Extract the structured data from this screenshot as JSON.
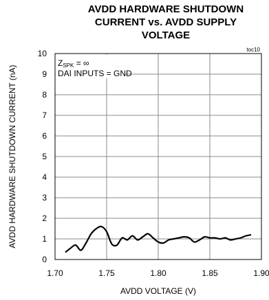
{
  "chart_data": {
    "type": "line",
    "title": "AVDD HARDWARE SHUTDOWN\nCURRENT vs. AVDD SUPPLY\nVOLTAGE",
    "xlabel": "AVDD VOLTAGE (V)",
    "ylabel": "AVDD HARDWARE SHUTDOWN CURRENT (nA)",
    "xlim": [
      1.7,
      1.9
    ],
    "ylim": [
      0,
      10
    ],
    "xticks": [
      "1.70",
      "1.75",
      "1.80",
      "1.85",
      "1.90"
    ],
    "yticks": [
      "0",
      "1",
      "2",
      "3",
      "4",
      "5",
      "6",
      "7",
      "8",
      "9",
      "10"
    ],
    "grid": true,
    "figure_id": "toc10",
    "annotations": {
      "zspk_main": "Z",
      "zspk_sub": "SPK",
      "zspk_rest": " = ∞",
      "dai": "DAI INPUTS = GND"
    },
    "series": [
      {
        "x": [
          1.71,
          1.715,
          1.72,
          1.725,
          1.73,
          1.735,
          1.74,
          1.745,
          1.75,
          1.755,
          1.76,
          1.765,
          1.77,
          1.775,
          1.78,
          1.785,
          1.79,
          1.795,
          1.8,
          1.805,
          1.81,
          1.815,
          1.82,
          1.825,
          1.83,
          1.835,
          1.84,
          1.845,
          1.85,
          1.855,
          1.86,
          1.865,
          1.87,
          1.875,
          1.88,
          1.885,
          1.89
        ],
        "y": [
          0.35,
          0.55,
          0.7,
          0.45,
          0.8,
          1.25,
          1.5,
          1.6,
          1.35,
          0.75,
          0.7,
          1.05,
          0.95,
          1.15,
          0.95,
          1.1,
          1.25,
          1.05,
          0.85,
          0.8,
          0.95,
          1.0,
          1.05,
          1.1,
          1.05,
          0.85,
          0.95,
          1.1,
          1.05,
          1.05,
          1.0,
          1.05,
          0.95,
          1.0,
          1.05,
          1.15,
          1.2
        ]
      }
    ]
  }
}
